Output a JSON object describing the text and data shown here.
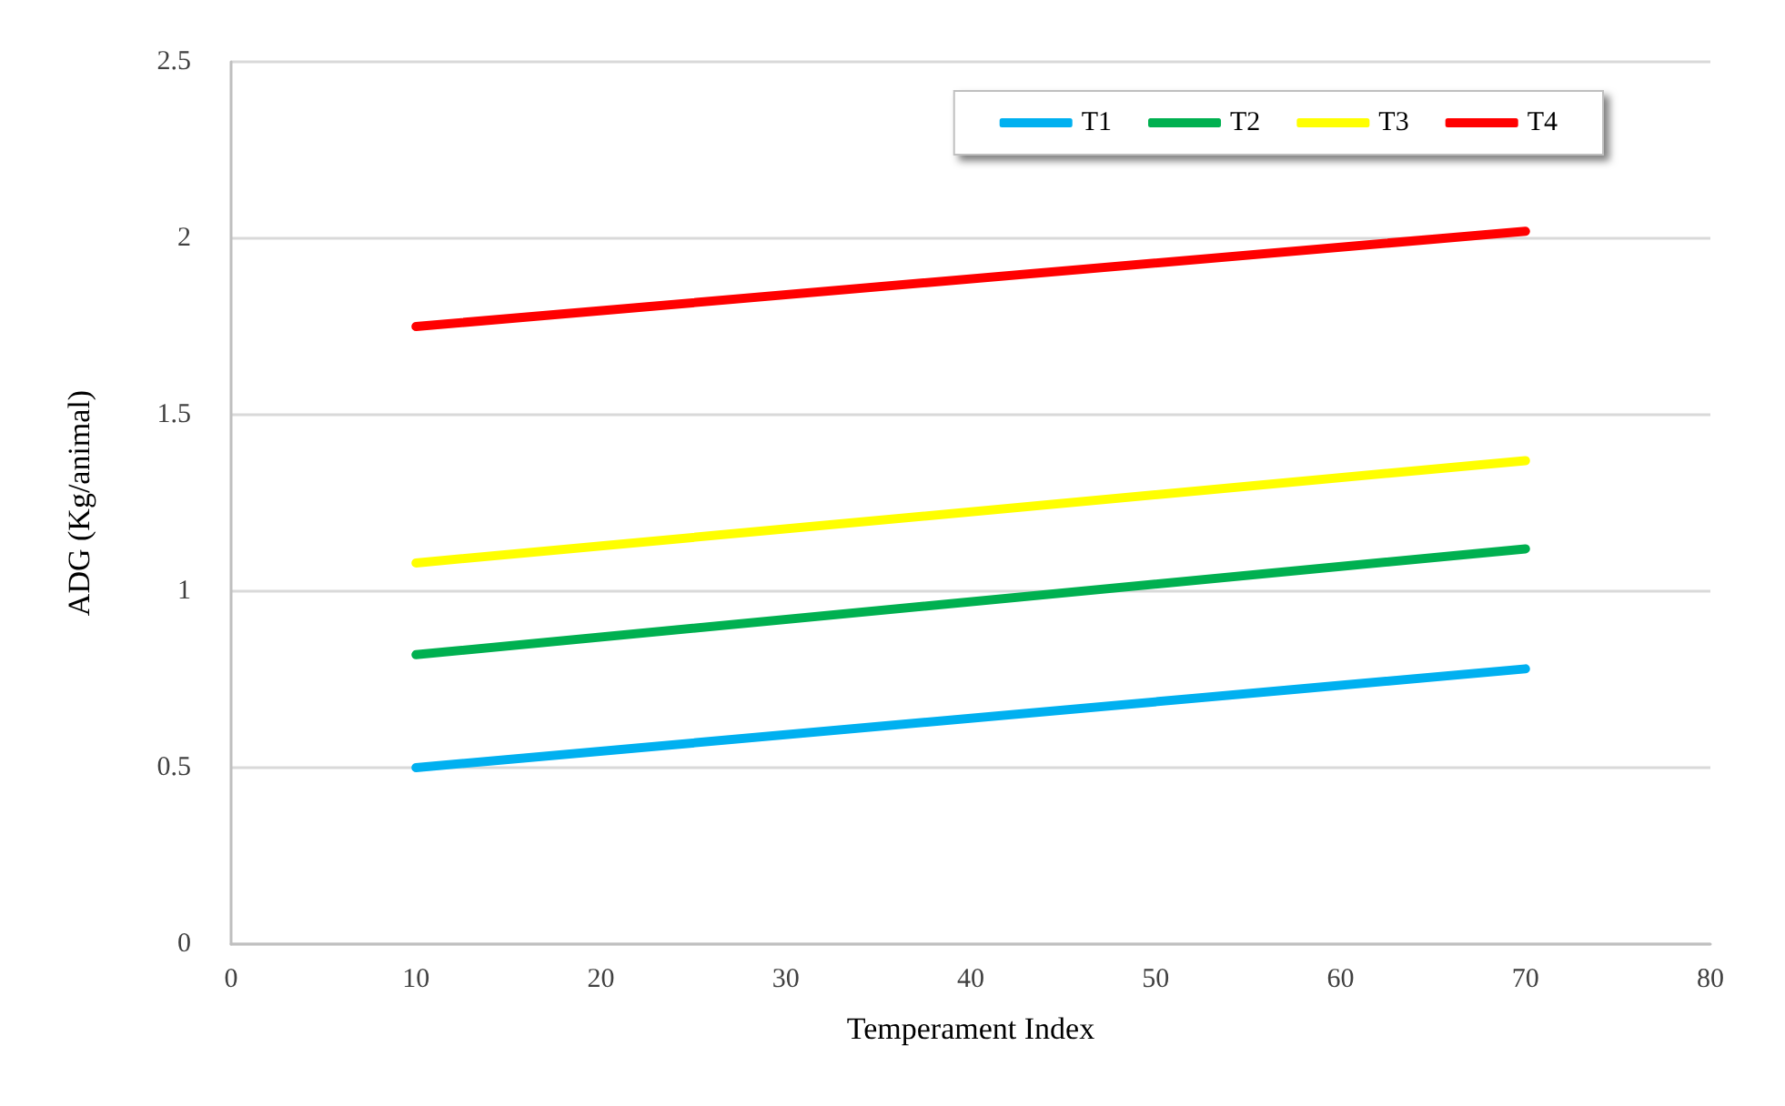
{
  "chart_data": {
    "type": "line",
    "xlabel": "Temperament Index",
    "ylabel": "ADG (Kg/animal)",
    "xlim": [
      0,
      80
    ],
    "xticks": [
      0,
      10,
      20,
      30,
      40,
      50,
      60,
      70,
      80
    ],
    "ylim": [
      0,
      2.5
    ],
    "yticks": [
      0,
      0.5,
      1,
      1.5,
      2,
      2.5
    ],
    "grid": "y",
    "legend": "top right",
    "marker": "none",
    "line_style": "solid",
    "x": [
      10,
      70
    ],
    "series": [
      {
        "name": "T1",
        "color": "#00b0f0",
        "values": [
          0.5,
          0.78
        ]
      },
      {
        "name": "T2",
        "color": "#00b050",
        "values": [
          0.82,
          1.12
        ]
      },
      {
        "name": "T3",
        "color": "#ffff00",
        "values": [
          1.08,
          1.37
        ]
      },
      {
        "name": "T4",
        "color": "#ff0000",
        "values": [
          1.75,
          2.02
        ]
      }
    ]
  }
}
